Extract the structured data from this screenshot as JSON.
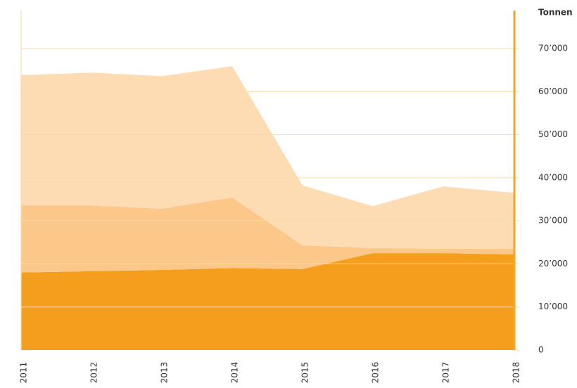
{
  "chart_data": {
    "type": "stacked_area",
    "y_axis_label": "Tonnen",
    "categories": [
      "2011",
      "2012",
      "2013",
      "2014",
      "2015",
      "2016",
      "2017",
      "2018"
    ],
    "series": [
      {
        "color": "#f59e1e",
        "values": [
          18000,
          18300,
          18600,
          19000,
          18800,
          22500,
          22500,
          22200
        ]
      },
      {
        "color": "#fbc88a",
        "values": [
          15600,
          15300,
          14200,
          16400,
          5500,
          1200,
          1000,
          1300
        ]
      },
      {
        "color": "#fddcb4",
        "values": [
          30200,
          30800,
          30800,
          30500,
          13900,
          9700,
          14500,
          13000
        ]
      }
    ],
    "ylim": [
      0,
      70000
    ],
    "yticks": [
      0,
      {
        "value": 10000,
        "label": "10’000"
      },
      {
        "value": 20000,
        "label": "20’000"
      },
      {
        "value": 30000,
        "label": "30’000"
      },
      {
        "value": 40000,
        "label": "40’000"
      },
      {
        "value": 50000,
        "label": "50’000"
      },
      {
        "value": 60000,
        "label": "60’000"
      },
      {
        "value": 70000,
        "label": "70’000"
      }
    ],
    "grid": true,
    "axis_color": "#f5a623",
    "grid_color": "#fbd9a8"
  }
}
